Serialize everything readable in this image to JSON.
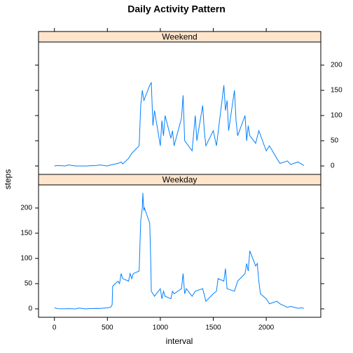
{
  "chart_data": {
    "type": "line",
    "title": "Daily Activity Pattern",
    "x_label": "interval",
    "y_label": "steps",
    "xlim": [
      -150,
      2515
    ],
    "xticks": [
      0,
      500,
      1000,
      1500,
      2000
    ],
    "ylim": [
      -16.7,
      245.8
    ],
    "yticks": [
      0,
      50,
      100,
      150,
      200
    ],
    "series": [
      {
        "name": "Weekend",
        "color": "#0080ff",
        "x": [
          0,
          30,
          100,
          130,
          200,
          300,
          400,
          430,
          500,
          530,
          600,
          630,
          645,
          700,
          715,
          730,
          800,
          815,
          830,
          845,
          900,
          915,
          930,
          945,
          1000,
          1015,
          1030,
          1045,
          1100,
          1115,
          1130,
          1200,
          1215,
          1230,
          1300,
          1330,
          1345,
          1400,
          1415,
          1430,
          1500,
          1530,
          1600,
          1615,
          1630,
          1645,
          1700,
          1715,
          1730,
          1800,
          1815,
          1830,
          1845,
          1900,
          1930,
          2000,
          2030,
          2100,
          2130,
          2200,
          2230,
          2300,
          2355
        ],
        "values": [
          0,
          1,
          0,
          2,
          0,
          0,
          1,
          2,
          0,
          2,
          5,
          8,
          4,
          15,
          20,
          25,
          40,
          120,
          150,
          130,
          160,
          165,
          80,
          110,
          40,
          90,
          60,
          100,
          55,
          70,
          40,
          95,
          140,
          50,
          30,
          100,
          50,
          120,
          70,
          40,
          70,
          40,
          160,
          110,
          130,
          70,
          150,
          90,
          60,
          100,
          50,
          80,
          60,
          45,
          70,
          30,
          40,
          15,
          5,
          10,
          3,
          8,
          1
        ]
      },
      {
        "name": "Weekday",
        "color": "#0080ff",
        "x": [
          0,
          30,
          100,
          130,
          200,
          230,
          300,
          330,
          400,
          430,
          500,
          530,
          545,
          550,
          600,
          615,
          630,
          645,
          700,
          715,
          730,
          745,
          800,
          815,
          830,
          835,
          840,
          845,
          850,
          900,
          910,
          915,
          930,
          945,
          1000,
          1015,
          1030,
          1045,
          1100,
          1115,
          1130,
          1200,
          1215,
          1230,
          1245,
          1300,
          1330,
          1400,
          1430,
          1500,
          1530,
          1545,
          1600,
          1615,
          1630,
          1700,
          1715,
          1730,
          1800,
          1815,
          1830,
          1845,
          1900,
          1915,
          1930,
          1945,
          2000,
          2030,
          2100,
          2130,
          2200,
          2230,
          2300,
          2330,
          2355
        ],
        "values": [
          2.3,
          0.4,
          0.2,
          0.5,
          0,
          1.5,
          0,
          0.5,
          1,
          0.8,
          2,
          3,
          8,
          45,
          55,
          50,
          70,
          60,
          55,
          70,
          60,
          70,
          75,
          175,
          200,
          230,
          210,
          195,
          200,
          170,
          90,
          35,
          30,
          25,
          40,
          20,
          35,
          25,
          20,
          35,
          30,
          40,
          70,
          30,
          40,
          25,
          35,
          40,
          15,
          30,
          35,
          60,
          55,
          80,
          40,
          35,
          45,
          55,
          70,
          90,
          75,
          115,
          85,
          90,
          55,
          30,
          20,
          10,
          15,
          10,
          3,
          5,
          1,
          2,
          1
        ]
      }
    ]
  }
}
